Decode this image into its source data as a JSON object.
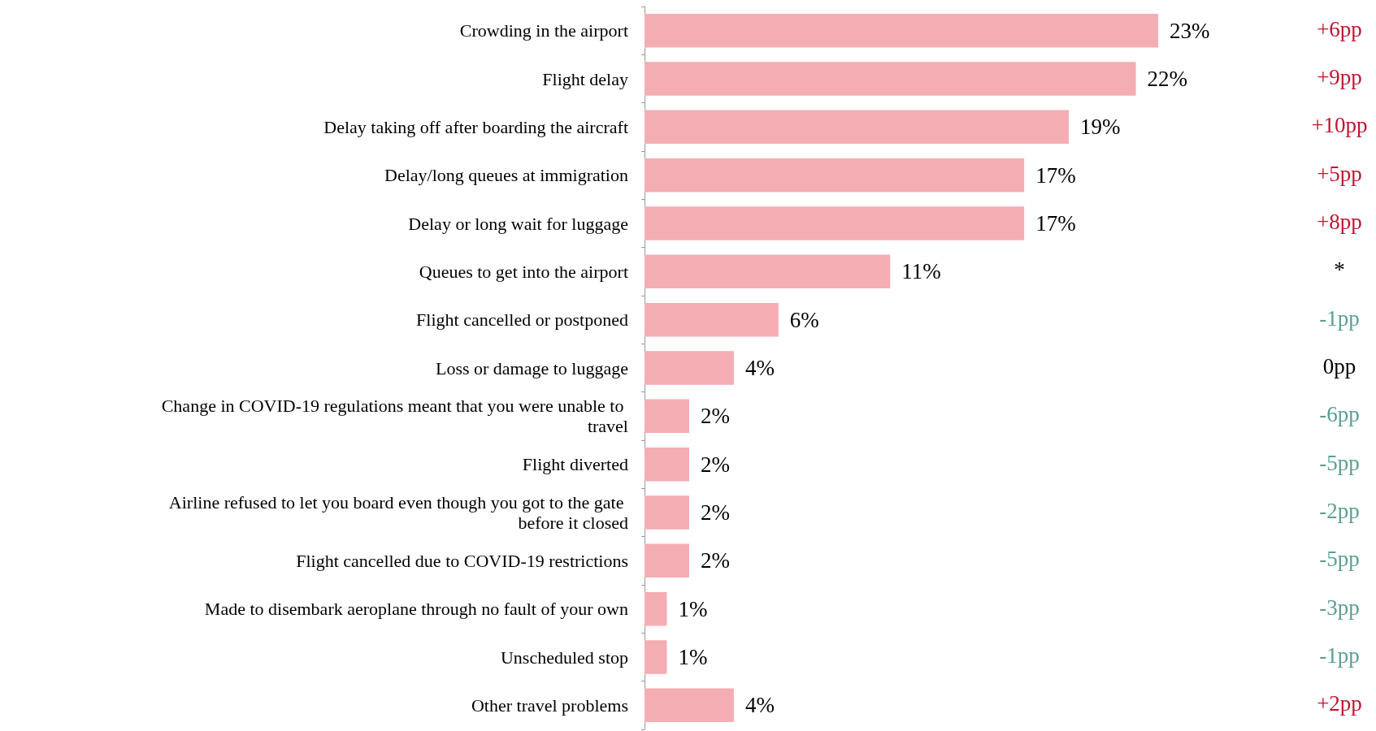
{
  "chart_data": {
    "type": "bar",
    "orientation": "horizontal",
    "categories": [
      "Crowding in the airport",
      "Flight delay",
      "Delay taking off after boarding the aircraft",
      "Delay/long queues at immigration",
      "Delay or long wait for luggage",
      "Queues to get into the airport",
      "Flight cancelled or postponed",
      "Loss or damage to luggage",
      "Change in COVID-19 regulations meant that you were unable to travel",
      "Flight diverted",
      "Airline refused to let you board even though you got to the gate before it closed",
      "Flight cancelled due to COVID-19 restrictions",
      "Made to disembark aeroplane through no fault of your own",
      "Unscheduled stop",
      "Other travel problems"
    ],
    "values": [
      23,
      22,
      19,
      17,
      17,
      11,
      6,
      4,
      2,
      2,
      2,
      2,
      1,
      1,
      4
    ],
    "value_labels": [
      "23%",
      "22%",
      "19%",
      "17%",
      "17%",
      "11%",
      "6%",
      "4%",
      "2%",
      "2%",
      "2%",
      "2%",
      "1%",
      "1%",
      "4%"
    ],
    "color": "#f4adb3",
    "annotations": [
      "+6pp",
      "+9pp",
      "+10pp",
      "+5pp",
      "+8pp",
      "*",
      "-1pp",
      "0pp",
      "-6pp",
      "-5pp",
      "-2pp",
      "-5pp",
      "-3pp",
      "-1pp",
      "+2pp"
    ]
  }
}
